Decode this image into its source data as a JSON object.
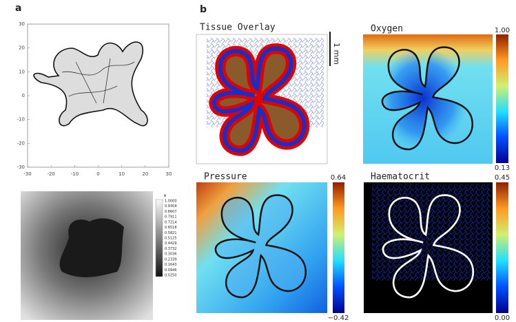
{
  "panel_a": {
    "label": "a",
    "plot": {
      "xlim": [
        -30,
        30
      ],
      "ylim": [
        -30,
        30
      ],
      "xticks": [
        -30,
        -20,
        -10,
        0,
        10,
        20,
        30
      ],
      "yticks": [
        -30,
        -20,
        -10,
        0,
        10,
        20,
        30
      ]
    },
    "colorbar": {
      "heading": "φ",
      "labels": [
        "1.0000",
        "0.9304",
        "0.8607",
        "0.7911",
        "0.7214",
        "0.6518",
        "0.5821",
        "0.5125",
        "0.4429",
        "0.3732",
        "0.3036",
        "0.2339",
        "0.1643",
        "0.0946",
        "0.0250"
      ]
    }
  },
  "panel_b": {
    "label": "b",
    "maps": [
      {
        "title": "Tissue Overlay",
        "scale_bar": "1 mm"
      },
      {
        "title": "Oxygen",
        "colorbar_max": "1.00",
        "colorbar_min": "0.13"
      },
      {
        "title": "Pressure",
        "colorbar_max": "0.64",
        "colorbar_min": "−0.42"
      },
      {
        "title": "Haematocrit",
        "colorbar_max": "0.45",
        "colorbar_min": "0.00"
      }
    ]
  }
}
